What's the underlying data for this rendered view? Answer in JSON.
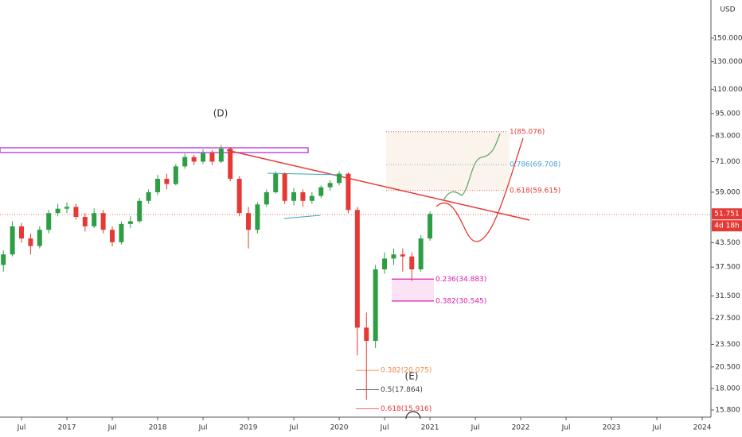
{
  "chart_data": {
    "type": "candlestick",
    "currency": "USD",
    "x": [
      2016.3,
      2016.4,
      2016.5,
      2016.6,
      2016.7,
      2016.8,
      2016.9,
      2017.0,
      2017.1,
      2017.2,
      2017.3,
      2017.4,
      2017.5,
      2017.6,
      2017.7,
      2017.8,
      2017.9,
      2018.0,
      2018.1,
      2018.2,
      2018.3,
      2018.4,
      2018.5,
      2018.6,
      2018.7,
      2018.8,
      2018.9,
      2019.0,
      2019.1,
      2019.2,
      2019.3,
      2019.4,
      2019.5,
      2019.6,
      2019.7,
      2019.8,
      2019.9,
      2020.0,
      2020.1,
      2020.2,
      2020.3,
      2020.4,
      2020.5,
      2020.6,
      2020.7,
      2020.8,
      2020.9,
      2021.0
    ],
    "open": [
      38,
      40.5,
      48,
      44.6,
      42.6,
      47,
      52,
      53.4,
      54,
      50.8,
      48,
      52,
      47,
      43.6,
      48.7,
      49.5,
      56,
      59,
      64,
      62,
      69,
      73,
      71,
      74.8,
      71,
      76.8,
      64,
      52,
      47,
      54.8,
      59,
      66,
      56,
      59,
      56,
      57.7,
      60.8,
      62.4,
      66,
      53,
      26,
      24,
      37,
      39.5,
      40.5,
      40,
      37,
      44.6
    ],
    "high": [
      41.5,
      49.5,
      49,
      46,
      48,
      53,
      55,
      55.5,
      55,
      52,
      53.5,
      53,
      48,
      49.5,
      51,
      57,
      60,
      65.5,
      66,
      70,
      74.5,
      74,
      76.5,
      76,
      78.5,
      77.5,
      65,
      54,
      55.5,
      60,
      67,
      66.5,
      60.5,
      60,
      59,
      61.5,
      63.5,
      67,
      66.5,
      54,
      28.5,
      38,
      41,
      42,
      42,
      41,
      45.5,
      52.5
    ],
    "low": [
      36.5,
      40,
      43.5,
      40.5,
      42,
      46,
      51,
      52,
      50,
      46.5,
      47.5,
      46,
      42.5,
      43,
      47.5,
      49,
      55,
      58,
      60,
      61.5,
      68,
      69.5,
      70,
      69.5,
      70.5,
      63,
      51,
      42,
      46,
      54,
      58.5,
      55,
      54.5,
      54,
      55,
      57,
      59.5,
      61.5,
      52,
      22,
      16.8,
      23,
      36,
      38,
      36.5,
      34.5,
      36.5,
      44
    ],
    "close": [
      40.5,
      48,
      44.6,
      42.6,
      47,
      52,
      53.4,
      54,
      50.8,
      48,
      52,
      47,
      43.6,
      48.7,
      49.5,
      56,
      59,
      64,
      62,
      69,
      73,
      71,
      74.8,
      71,
      76.8,
      64,
      52,
      47,
      54.8,
      59,
      66,
      56,
      59,
      56,
      57.7,
      60.8,
      62.4,
      66,
      53,
      26,
      24,
      37,
      39.5,
      40.5,
      40,
      37,
      44.6,
      51.751
    ],
    "up_color": "#2e9e45",
    "down_color": "#e53935",
    "log_scale": true,
    "grid": false,
    "ylim": [
      15.13,
      188.8
    ],
    "yticks": [
      {
        "value": 15.8,
        "label": "15.800"
      },
      {
        "value": 18,
        "label": "18.000"
      },
      {
        "value": 20.5,
        "label": "20.500"
      },
      {
        "value": 23.5,
        "label": "23.500"
      },
      {
        "value": 27.5,
        "label": "27.500"
      },
      {
        "value": 31.5,
        "label": "31.500"
      },
      {
        "value": 37.5,
        "label": "37.500"
      },
      {
        "value": 43.5,
        "label": "43.500"
      },
      {
        "value": 59,
        "label": "59.000"
      },
      {
        "value": 71,
        "label": "71.000"
      },
      {
        "value": 83,
        "label": "83.000"
      },
      {
        "value": 95,
        "label": "95.000"
      },
      {
        "value": 110,
        "label": "110.000"
      },
      {
        "value": 130,
        "label": "130.000"
      },
      {
        "value": 150,
        "label": "150.000"
      }
    ],
    "xlim": [
      2016.263,
      2024.096
    ],
    "xticks": [
      {
        "value": 2016.5,
        "label": "Jul"
      },
      2017,
      {
        "value": 2017.5,
        "label": "Jul"
      },
      2018,
      {
        "value": 2018.5,
        "label": "Jul"
      },
      2019,
      {
        "value": 2019.5,
        "label": "Jul"
      },
      2020,
      {
        "value": 2020.5,
        "label": "Jul"
      },
      2021,
      {
        "value": 2021.5,
        "label": "Jul"
      },
      2022,
      {
        "value": 2022.5,
        "label": "Jul"
      },
      2023,
      {
        "value": 2023.5,
        "label": "Jul"
      },
      2024
    ],
    "last_price": 51.751,
    "countdown": "4d 18h",
    "wave_labels": [
      "(D)",
      "(E)"
    ],
    "fib_levels": [
      {
        "label": "1(85.076)",
        "value": 85.076,
        "color": "#e53935"
      },
      {
        "label": "0.786(69.708)",
        "value": 69.708,
        "color": "#4a9fd4"
      },
      {
        "label": "0.618(59.615)",
        "value": 59.615,
        "color": "#e53935"
      },
      {
        "label": "0.236(34.883)",
        "value": 34.883,
        "color": "#d81bb0"
      },
      {
        "label": "0.382(30.545)",
        "value": 30.545,
        "color": "#d81bb0"
      },
      {
        "label": "0.382(20.075)",
        "value": 20.075,
        "color": "#f08a4b"
      },
      {
        "label": "0.5(17.864)",
        "value": 17.864,
        "color": "#444444"
      },
      {
        "label": "0.618(15.916)",
        "value": 15.916,
        "color": "#e53935"
      }
    ]
  }
}
